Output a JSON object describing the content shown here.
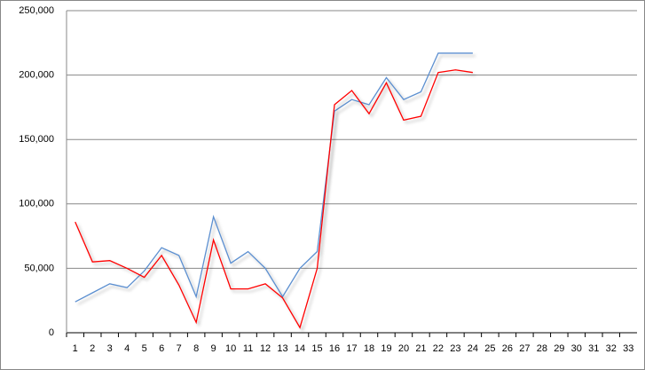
{
  "chart_data": {
    "type": "line",
    "categories": [
      "1",
      "2",
      "3",
      "4",
      "5",
      "6",
      "7",
      "8",
      "9",
      "10",
      "11",
      "12",
      "13",
      "14",
      "15",
      "16",
      "17",
      "18",
      "19",
      "20",
      "21",
      "22",
      "23",
      "24",
      "25",
      "26",
      "27",
      "28",
      "29",
      "30",
      "31",
      "32",
      "33"
    ],
    "series": [
      {
        "color": "#5b8fd0",
        "values": [
          24000,
          31000,
          38000,
          35000,
          48000,
          66000,
          60000,
          28000,
          90000,
          54000,
          63000,
          50000,
          28000,
          50000,
          63000,
          172000,
          181000,
          177000,
          198000,
          181000,
          187000,
          217000,
          217000,
          217000,
          null,
          null,
          null,
          null,
          null,
          null,
          null,
          null,
          null
        ]
      },
      {
        "color": "#ff0000",
        "values": [
          86000,
          55000,
          56000,
          50000,
          43000,
          60000,
          37000,
          8000,
          72000,
          34000,
          34000,
          38000,
          27000,
          4000,
          50000,
          177000,
          188000,
          170000,
          194000,
          165000,
          168000,
          202000,
          204000,
          202000,
          null,
          null,
          null,
          null,
          null,
          null,
          null,
          null,
          null
        ]
      }
    ],
    "ylim": [
      0,
      250000
    ],
    "yticks": [
      0,
      {
        "value": 50000,
        "label": "50,000"
      },
      {
        "value": 100000,
        "label": "100,000"
      },
      {
        "value": 150000,
        "label": "150,000"
      },
      {
        "value": 200000,
        "label": "200,000"
      },
      {
        "value": 250000,
        "label": "250,000"
      }
    ],
    "grid": true
  }
}
